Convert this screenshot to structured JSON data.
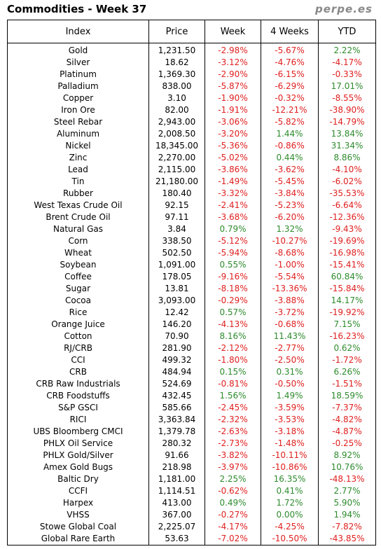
{
  "header": {
    "title": "Commodities - Week 37",
    "brand": "perpe.es"
  },
  "columns": [
    "Index",
    "Price",
    "Week",
    "4 Weeks",
    "YTD"
  ],
  "rows": [
    [
      "Gold",
      "1,231.50",
      "-2.98%",
      "-5.67%",
      "2.22%"
    ],
    [
      "Silver",
      "18.62",
      "-3.12%",
      "-4.76%",
      "-4.17%"
    ],
    [
      "Platinum",
      "1,369.30",
      "-2.90%",
      "-6.15%",
      "-0.33%"
    ],
    [
      "Palladium",
      "838.00",
      "-5.87%",
      "-6.29%",
      "17.01%"
    ],
    [
      "Copper",
      "3.10",
      "-1.90%",
      "-0.32%",
      "-8.55%"
    ],
    [
      "Iron Ore",
      "82.00",
      "-1.91%",
      "-12.21%",
      "-38.90%"
    ],
    [
      "Steel Rebar",
      "2,943.00",
      "-3.06%",
      "-5.82%",
      "-14.79%"
    ],
    [
      "Aluminum",
      "2,008.50",
      "-3.20%",
      "1.44%",
      "13.84%"
    ],
    [
      "Nickel",
      "18,345.00",
      "-5.36%",
      "-0.86%",
      "31.34%"
    ],
    [
      "Zinc",
      "2,270.00",
      "-5.02%",
      "0.44%",
      "8.86%"
    ],
    [
      "Lead",
      "2,115.00",
      "-3.86%",
      "-3.62%",
      "-4.10%"
    ],
    [
      "Tin",
      "21,180.00",
      "-1.49%",
      "-5.45%",
      "-6.02%"
    ],
    [
      "Rubber",
      "180.40",
      "-3.32%",
      "-3.84%",
      "-35.53%"
    ],
    [
      "West Texas Crude Oil",
      "92.15",
      "-2.41%",
      "-5.23%",
      "-6.64%"
    ],
    [
      "Brent Crude Oil",
      "97.11",
      "-3.68%",
      "-6.20%",
      "-12.36%"
    ],
    [
      "Natural Gas",
      "3.84",
      "0.79%",
      "1.32%",
      "-9.43%"
    ],
    [
      "Corn",
      "338.50",
      "-5.12%",
      "-10.27%",
      "-19.69%"
    ],
    [
      "Wheat",
      "502.50",
      "-5.94%",
      "-8.68%",
      "-16.98%"
    ],
    [
      "Soybean",
      "1,091.00",
      "0.55%",
      "-1.00%",
      "-15.41%"
    ],
    [
      "Coffee",
      "178.05",
      "-9.16%",
      "-5.54%",
      "60.84%"
    ],
    [
      "Sugar",
      "13.81",
      "-8.18%",
      "-13.36%",
      "-15.84%"
    ],
    [
      "Cocoa",
      "3,093.00",
      "-0.29%",
      "-3.88%",
      "14.17%"
    ],
    [
      "Rice",
      "12.42",
      "0.57%",
      "-3.72%",
      "-19.92%"
    ],
    [
      "Orange Juice",
      "146.20",
      "-4.13%",
      "-0.68%",
      "7.15%"
    ],
    [
      "Cotton",
      "70.90",
      "8.16%",
      "11.43%",
      "-16.23%"
    ],
    [
      "RJ/CRB",
      "281.90",
      "-2.12%",
      "-2.77%",
      "0.62%"
    ],
    [
      "CCI",
      "499.32",
      "-1.80%",
      "-2.50%",
      "-1.72%"
    ],
    [
      "CRB",
      "484.94",
      "0.15%",
      "0.31%",
      "6.26%"
    ],
    [
      "CRB Raw Industrials",
      "524.69",
      "-0.81%",
      "-0.50%",
      "-1.51%"
    ],
    [
      "CRB Foodstuffs",
      "432.45",
      "1.56%",
      "1.49%",
      "18.59%"
    ],
    [
      "S&P GSCI",
      "585.66",
      "-2.45%",
      "-3.59%",
      "-7.37%"
    ],
    [
      "RICI",
      "3,363.84",
      "-2.32%",
      "-3.53%",
      "-4.82%"
    ],
    [
      "UBS Bloomberg CMCI",
      "1,379.78",
      "-2.63%",
      "-3.18%",
      "-4.87%"
    ],
    [
      "PHLX Oil Service",
      "280.32",
      "-2.73%",
      "-1.48%",
      "-0.25%"
    ],
    [
      "PHLX Gold/Silver",
      "91.66",
      "-3.82%",
      "-10.11%",
      "8.92%"
    ],
    [
      "Amex Gold Bugs",
      "218.98",
      "-3.97%",
      "-10.86%",
      "10.76%"
    ],
    [
      "Baltic Dry",
      "1,181.00",
      "2.25%",
      "16.35%",
      "-48.13%"
    ],
    [
      "CCFI",
      "1,114.51",
      "-0.62%",
      "0.41%",
      "2.77%"
    ],
    [
      "Harpex",
      "413.00",
      "0.49%",
      "1.72%",
      "5.90%"
    ],
    [
      "VHSS",
      "367.00",
      "-0.27%",
      "0.00%",
      "1.94%"
    ],
    [
      "Stowe Global Coal",
      "2,225.07",
      "-4.17%",
      "-4.25%",
      "-7.82%"
    ],
    [
      "Global Rare Earth",
      "53.63",
      "-7.02%",
      "-10.50%",
      "-43.85%"
    ]
  ],
  "colors": {
    "positive": "#2e8b2e",
    "negative": "#e02020",
    "brand": "#888888"
  }
}
